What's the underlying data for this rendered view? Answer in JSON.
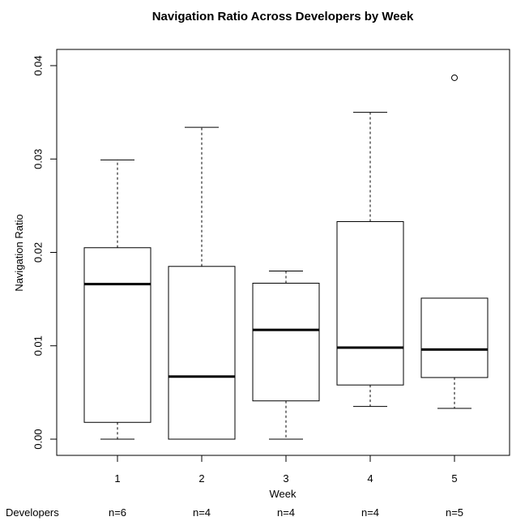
{
  "chart_data": {
    "type": "boxplot",
    "title": "Navigation Ratio Across Developers by Week",
    "xlabel": "Week",
    "ylabel": "Navigation Ratio",
    "ylim": [
      0.0,
      0.04
    ],
    "yticks": [
      "0.00",
      "0.01",
      "0.02",
      "0.03",
      "0.04"
    ],
    "categories": [
      "1",
      "2",
      "3",
      "4",
      "5"
    ],
    "boxes": [
      {
        "week": "1",
        "min": 0.0,
        "q1": 0.0018,
        "median": 0.0166,
        "q3": 0.0205,
        "max": 0.0299,
        "outliers": []
      },
      {
        "week": "2",
        "min": 0.0,
        "q1": 0.0,
        "median": 0.0067,
        "q3": 0.0185,
        "max": 0.0334,
        "outliers": []
      },
      {
        "week": "3",
        "min": 0.0,
        "q1": 0.0041,
        "median": 0.0117,
        "q3": 0.0167,
        "max": 0.018,
        "outliers": []
      },
      {
        "week": "4",
        "min": 0.0035,
        "q1": 0.0058,
        "median": 0.0098,
        "q3": 0.0233,
        "max": 0.035,
        "outliers": []
      },
      {
        "week": "5",
        "min": 0.0033,
        "q1": 0.0066,
        "median": 0.0096,
        "q3": 0.0151,
        "max": 0.0151,
        "outliers": [
          0.0387
        ]
      }
    ],
    "footer": {
      "label": "Developers",
      "counts": [
        "n=6",
        "n=4",
        "n=4",
        "n=4",
        "n=5"
      ]
    },
    "grid": false,
    "legend": "none"
  }
}
